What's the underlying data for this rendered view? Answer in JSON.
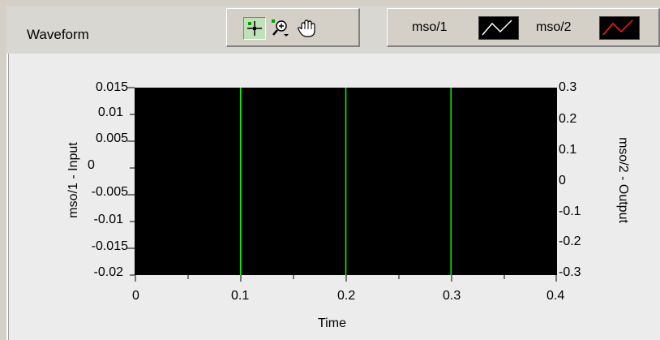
{
  "graph": {
    "title": "Waveform"
  },
  "tools": [
    {
      "name": "cursor-tool",
      "icon": "crosshair-cursor-icon",
      "pressed": true
    },
    {
      "name": "zoom-tool",
      "icon": "zoom-magnifier-icon",
      "pressed": false
    },
    {
      "name": "pan-tool",
      "icon": "hand-pan-icon",
      "pressed": false
    }
  ],
  "legend": {
    "items": [
      {
        "label": "mso/1",
        "color": "#ffffff"
      },
      {
        "label": "mso/2",
        "color": "#ff2020"
      }
    ]
  },
  "chart_data": {
    "type": "line",
    "xlabel": "Time",
    "ylabel_left": "mso/1 - Input",
    "ylabel_right": "mso/2 - Output",
    "x_ticks": [
      "0",
      "0.1",
      "0.2",
      "0.3",
      "0.4"
    ],
    "xlim": [
      0,
      0.4
    ],
    "y_left_ticks": [
      "0.015",
      "0.01",
      "0.005",
      "0",
      "-0.005",
      "-0.01",
      "-0.015",
      "-0.02"
    ],
    "ylim_left": [
      -0.02,
      0.015
    ],
    "y_right_ticks": [
      "0.3",
      "0.2",
      "0.1",
      "0",
      "-0.1",
      "-0.2",
      "-0.3"
    ],
    "ylim_right": [
      -0.3,
      0.3
    ],
    "cursor_lines_x": [
      0.1,
      0.2,
      0.3
    ],
    "cursor_color": "#00ff00",
    "plot_background": "#000000",
    "series": [
      {
        "name": "mso/1",
        "values": []
      },
      {
        "name": "mso/2",
        "values": []
      }
    ]
  }
}
